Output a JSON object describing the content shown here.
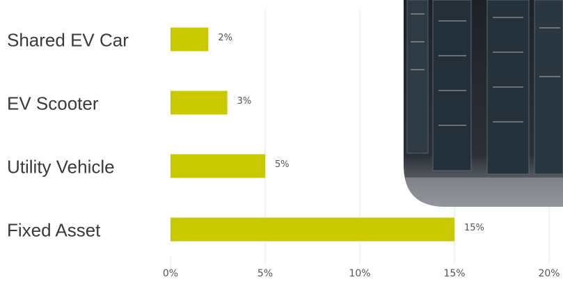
{
  "chart_data": {
    "type": "bar",
    "orientation": "horizontal",
    "categories": [
      "Shared EV Car",
      "EV Scooter",
      "Utility Vehicle",
      "Fixed Asset"
    ],
    "values": [
      2,
      3,
      5,
      15
    ],
    "value_labels": [
      "2%",
      "3%",
      "5%",
      "15%"
    ],
    "color": "#c9c900",
    "xlim": [
      0,
      20
    ],
    "xticks": [
      {
        "value": 0,
        "label": "0%"
      },
      {
        "value": 5,
        "label": "5%"
      },
      {
        "value": 10,
        "label": "10%"
      },
      {
        "value": 15,
        "label": "15%"
      },
      {
        "value": 20,
        "label": "20%"
      }
    ],
    "grid": true
  }
}
